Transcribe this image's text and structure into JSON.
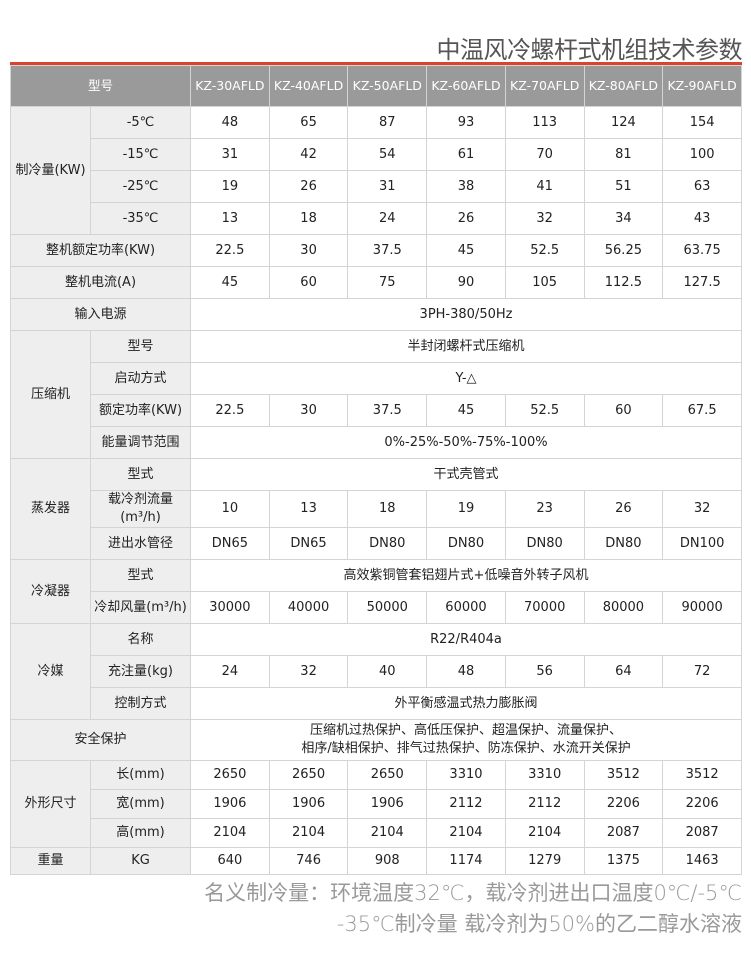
{
  "title": "中温风冷螺杆式机组技术参数",
  "header": {
    "label": "型号",
    "models": [
      "KZ-30AFLD",
      "KZ-40AFLD",
      "KZ-50AFLD",
      "KZ-60AFLD",
      "KZ-70AFLD",
      "KZ-80AFLD",
      "KZ-90AFLD"
    ]
  },
  "groups": [
    {
      "label": "制冷量(KW)",
      "rows": [
        {
          "label": "-5℃",
          "values": [
            "48",
            "65",
            "87",
            "93",
            "113",
            "124",
            "154"
          ]
        },
        {
          "label": "-15℃",
          "values": [
            "31",
            "42",
            "54",
            "61",
            "70",
            "81",
            "100"
          ]
        },
        {
          "label": "-25℃",
          "values": [
            "19",
            "26",
            "31",
            "38",
            "41",
            "51",
            "63"
          ]
        },
        {
          "label": "-35℃",
          "values": [
            "13",
            "18",
            "24",
            "26",
            "32",
            "34",
            "43"
          ]
        }
      ]
    },
    {
      "label": "整机额定功率(KW)",
      "values": [
        "22.5",
        "30",
        "37.5",
        "45",
        "52.5",
        "56.25",
        "63.75"
      ]
    },
    {
      "label": "整机电流(A)",
      "values": [
        "45",
        "60",
        "75",
        "90",
        "105",
        "112.5",
        "127.5"
      ]
    },
    {
      "label": "输入电源",
      "span": "3PH-380/50Hz"
    },
    {
      "label": "压缩机",
      "rows": [
        {
          "label": "型号",
          "span": "半封闭螺杆式压缩机"
        },
        {
          "label": "启动方式",
          "span": "Y-△"
        },
        {
          "label": "额定功率(KW)",
          "values": [
            "22.5",
            "30",
            "37.5",
            "45",
            "52.5",
            "60",
            "67.5"
          ]
        },
        {
          "label": "能量调节范围",
          "span": "0%-25%-50%-75%-100%"
        }
      ]
    },
    {
      "label": "蒸发器",
      "rows": [
        {
          "label": "型式",
          "span": "干式壳管式"
        },
        {
          "label": "载冷剂流量(m³/h)",
          "values": [
            "10",
            "13",
            "18",
            "19",
            "23",
            "26",
            "32"
          ]
        },
        {
          "label": "进出水管径",
          "values": [
            "DN65",
            "DN65",
            "DN80",
            "DN80",
            "DN80",
            "DN80",
            "DN100"
          ]
        }
      ]
    },
    {
      "label": "冷凝器",
      "rows": [
        {
          "label": "型式",
          "span": "高效紫铜管套铝翅片式+低噪音外转子风机"
        },
        {
          "label": "冷却风量(m³/h)",
          "values": [
            "30000",
            "40000",
            "50000",
            "60000",
            "70000",
            "80000",
            "90000"
          ]
        }
      ]
    },
    {
      "label": "冷媒",
      "rows": [
        {
          "label": "名称",
          "span": "R22/R404a"
        },
        {
          "label": "充注量(kg)",
          "values": [
            "24",
            "32",
            "40",
            "48",
            "56",
            "64",
            "72"
          ]
        },
        {
          "label": "控制方式",
          "span": "外平衡感温式热力膨胀阀"
        }
      ]
    },
    {
      "label": "安全保护",
      "span": "压缩机过热保护、高低压保护、超温保护、流量保护、\n相序/缺相保护、排气过热保护、防冻保护、水流开关保护",
      "cls": "safety"
    },
    {
      "label": "外形尺寸",
      "cls": "dim",
      "rows": [
        {
          "label": "长(mm)",
          "values": [
            "2650",
            "2650",
            "2650",
            "3310",
            "3310",
            "3512",
            "3512"
          ]
        },
        {
          "label": "宽(mm)",
          "values": [
            "1906",
            "1906",
            "1906",
            "2112",
            "2112",
            "2206",
            "2206"
          ]
        },
        {
          "label": "高(mm)",
          "values": [
            "2104",
            "2104",
            "2104",
            "2104",
            "2104",
            "2087",
            "2087"
          ]
        }
      ]
    },
    {
      "label": "重量",
      "cls": "weight",
      "rows": [
        {
          "label": "KG",
          "values": [
            "640",
            "746",
            "908",
            "1174",
            "1279",
            "1375",
            "1463"
          ]
        }
      ]
    }
  ],
  "note": {
    "line1": "名义制冷量：环境温度32℃，载冷剂进出口温度0℃/-5℃",
    "line2": "-35℃制冷量   载冷剂为50%的乙二醇水溶液"
  },
  "colors": {
    "accent": "#d9442f",
    "header_bg": "#9a9a9a",
    "label_bg": "#eeeeee"
  }
}
